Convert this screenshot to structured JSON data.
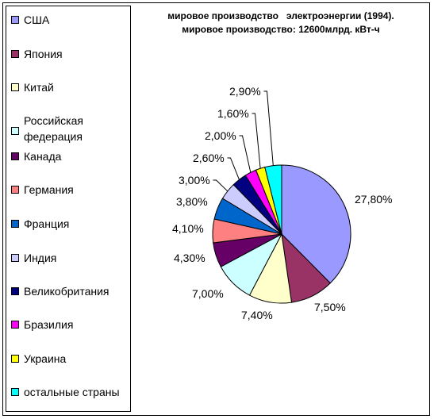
{
  "chart_data": {
    "type": "pie",
    "title": "мировое производство   электроэнергии (1994).",
    "subtitle": "мировое производство: 12600млрд. кВт-ч",
    "slices": [
      {
        "name": "США",
        "value": 27.8,
        "label": "27,80%",
        "color": "#9999ff"
      },
      {
        "name": "Япония",
        "value": 7.5,
        "label": "7,50%",
        "color": "#993366"
      },
      {
        "name": "Китай",
        "value": 7.4,
        "label": "7,40%",
        "color": "#ffffcc"
      },
      {
        "name": "Российская федерация",
        "value": 7.0,
        "label": "7,00%",
        "color": "#ccffff"
      },
      {
        "name": "Канада",
        "value": 4.3,
        "label": "4,30%",
        "color": "#660066"
      },
      {
        "name": "Германия",
        "value": 4.1,
        "label": "4,10%",
        "color": "#ff8080"
      },
      {
        "name": "Франция",
        "value": 3.8,
        "label": "3,80%",
        "color": "#0066cc"
      },
      {
        "name": "Индия",
        "value": 3.0,
        "label": "3,00%",
        "color": "#ccccff"
      },
      {
        "name": "Великобритания",
        "value": 2.6,
        "label": "2,60%",
        "color": "#000080"
      },
      {
        "name": "Бразилия",
        "value": 2.0,
        "label": "2,00%",
        "color": "#ff00ff"
      },
      {
        "name": "Украина",
        "value": 1.6,
        "label": "1,60%",
        "color": "#ffff00"
      },
      {
        "name": "остальные страны",
        "value": 2.9,
        "label": "2,90%",
        "color": "#00ffff"
      }
    ],
    "legend": "left",
    "legend_labels": [
      "США",
      "Япония",
      "Китай",
      "Российская\nфедерация",
      "Канада",
      "Германия",
      "Франция",
      "Индия",
      "Великобритания",
      "Бразилия",
      "Украина",
      "остальные страны"
    ]
  }
}
